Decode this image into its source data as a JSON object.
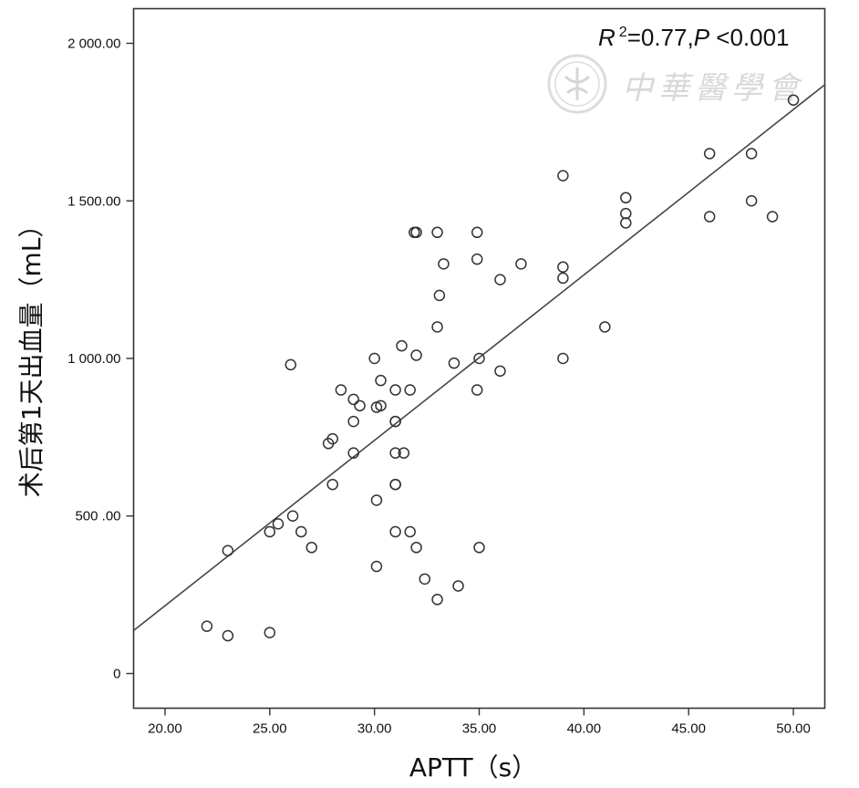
{
  "chart_data": {
    "type": "scatter",
    "title": "",
    "xlabel": "APTT（s）",
    "ylabel": "术后第1天出血量（mL）",
    "xlim": [
      18.5,
      51.5
    ],
    "ylim": [
      -110,
      2110
    ],
    "x_ticks": [
      20,
      25,
      30,
      35,
      40,
      45,
      50
    ],
    "x_tick_labels": [
      "20.00",
      "25.00",
      "30.00",
      "35.00",
      "40.00",
      "45.00",
      "50.00"
    ],
    "y_ticks": [
      0,
      500,
      1000,
      1500,
      2000
    ],
    "y_tick_labels": [
      "0",
      "500 .00",
      "1 000.00",
      "1 500.00",
      "2 000.00"
    ],
    "annotation": {
      "r_label": "R",
      "r_sup": "2",
      "r_value": "=0.77,",
      "p_label": "P",
      "p_value": " <0.001"
    },
    "watermark": "中華醫學會",
    "fit_line": {
      "slope": 52.5,
      "intercept": -835
    },
    "points": [
      {
        "x": 22,
        "y": 150
      },
      {
        "x": 23,
        "y": 120
      },
      {
        "x": 23,
        "y": 390
      },
      {
        "x": 25,
        "y": 130
      },
      {
        "x": 25,
        "y": 450
      },
      {
        "x": 25.4,
        "y": 475
      },
      {
        "x": 26,
        "y": 980
      },
      {
        "x": 26.1,
        "y": 500
      },
      {
        "x": 26.5,
        "y": 450
      },
      {
        "x": 27,
        "y": 400
      },
      {
        "x": 27.8,
        "y": 730
      },
      {
        "x": 28,
        "y": 745
      },
      {
        "x": 28,
        "y": 600
      },
      {
        "x": 28.4,
        "y": 900
      },
      {
        "x": 29,
        "y": 870
      },
      {
        "x": 29,
        "y": 800
      },
      {
        "x": 29,
        "y": 700
      },
      {
        "x": 29.3,
        "y": 850
      },
      {
        "x": 30,
        "y": 1000
      },
      {
        "x": 30.1,
        "y": 845
      },
      {
        "x": 30.3,
        "y": 850
      },
      {
        "x": 30.3,
        "y": 930
      },
      {
        "x": 30.1,
        "y": 550
      },
      {
        "x": 30.1,
        "y": 340
      },
      {
        "x": 31,
        "y": 900
      },
      {
        "x": 31,
        "y": 800
      },
      {
        "x": 31,
        "y": 800
      },
      {
        "x": 31,
        "y": 700
      },
      {
        "x": 31,
        "y": 600
      },
      {
        "x": 31,
        "y": 600
      },
      {
        "x": 31,
        "y": 450
      },
      {
        "x": 31.3,
        "y": 1040
      },
      {
        "x": 31.4,
        "y": 700
      },
      {
        "x": 31.7,
        "y": 900
      },
      {
        "x": 31.7,
        "y": 450
      },
      {
        "x": 31.9,
        "y": 1400
      },
      {
        "x": 32,
        "y": 1400
      },
      {
        "x": 32,
        "y": 1010
      },
      {
        "x": 32,
        "y": 400
      },
      {
        "x": 32.4,
        "y": 300
      },
      {
        "x": 33,
        "y": 1400
      },
      {
        "x": 33,
        "y": 1100
      },
      {
        "x": 33.1,
        "y": 1200
      },
      {
        "x": 33,
        "y": 235
      },
      {
        "x": 33.3,
        "y": 1300
      },
      {
        "x": 33.8,
        "y": 985
      },
      {
        "x": 34,
        "y": 278
      },
      {
        "x": 34.9,
        "y": 1400
      },
      {
        "x": 34.9,
        "y": 1315
      },
      {
        "x": 34.9,
        "y": 900
      },
      {
        "x": 35,
        "y": 1000
      },
      {
        "x": 35,
        "y": 400
      },
      {
        "x": 36,
        "y": 1250
      },
      {
        "x": 36,
        "y": 960
      },
      {
        "x": 37,
        "y": 1300
      },
      {
        "x": 39,
        "y": 1580
      },
      {
        "x": 39,
        "y": 1290
      },
      {
        "x": 39,
        "y": 1255
      },
      {
        "x": 39,
        "y": 1000
      },
      {
        "x": 41,
        "y": 1100
      },
      {
        "x": 42,
        "y": 1510
      },
      {
        "x": 42,
        "y": 1460
      },
      {
        "x": 42,
        "y": 1430
      },
      {
        "x": 46,
        "y": 1650
      },
      {
        "x": 46,
        "y": 1450
      },
      {
        "x": 48,
        "y": 1650
      },
      {
        "x": 48,
        "y": 1500
      },
      {
        "x": 49,
        "y": 1450
      },
      {
        "x": 50,
        "y": 1820
      }
    ],
    "grid": false,
    "legend": "none"
  }
}
